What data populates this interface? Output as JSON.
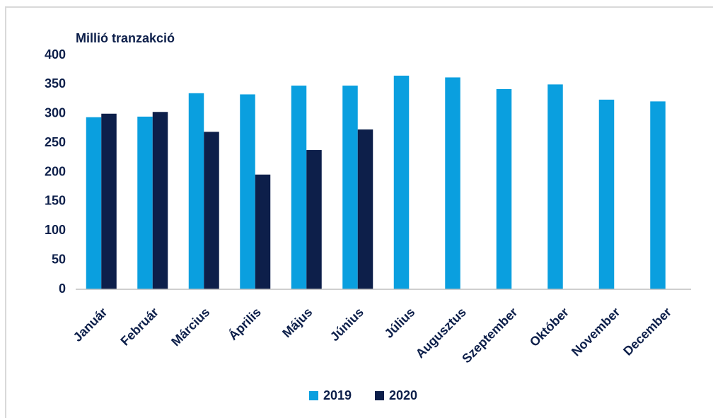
{
  "chart_data": {
    "type": "bar",
    "title": "Millió tranzakció",
    "categories": [
      "Január",
      "Február",
      "Március",
      "Április",
      "Május",
      "Június",
      "Július",
      "Augusztus",
      "Szeptember",
      "Október",
      "November",
      "December"
    ],
    "series": [
      {
        "name": "2019",
        "color": "#0a9fdf",
        "values": [
          294,
          295,
          335,
          333,
          348,
          348,
          365,
          362,
          342,
          350,
          324,
          321
        ]
      },
      {
        "name": "2020",
        "color": "#0d1f4a",
        "values": [
          300,
          303,
          269,
          196,
          238,
          273,
          null,
          null,
          null,
          null,
          null,
          null
        ]
      }
    ],
    "ylim": [
      0,
      400
    ],
    "yticks": [
      0,
      50,
      100,
      150,
      200,
      250,
      300,
      350,
      400
    ],
    "grid": false,
    "legend": "bottom"
  }
}
